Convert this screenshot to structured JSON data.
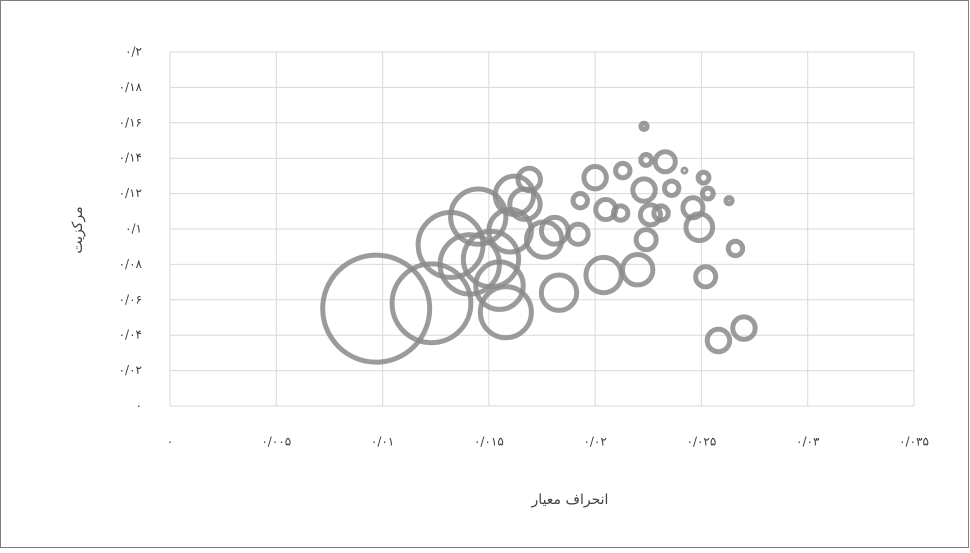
{
  "chart_data": {
    "type": "bubble",
    "x_label": "انحراف معیار",
    "y_label": "مرکزیت",
    "color": "#8a8a8a",
    "grid": true,
    "xlim": [
      0,
      0.035
    ],
    "ylim": [
      0,
      0.2
    ],
    "xticks": [
      {
        "value": 0,
        "label": "۰"
      },
      {
        "value": 0.005,
        "label": "۰/۰۰۵"
      },
      {
        "value": 0.01,
        "label": "۰/۰۱"
      },
      {
        "value": 0.015,
        "label": "۰/۰۱۵"
      },
      {
        "value": 0.02,
        "label": "۰/۰۲"
      },
      {
        "value": 0.025,
        "label": "۰/۰۲۵"
      },
      {
        "value": 0.03,
        "label": "۰/۰۳"
      },
      {
        "value": 0.035,
        "label": "۰/۰۳۵"
      }
    ],
    "yticks": [
      {
        "value": 0,
        "label": "۰"
      },
      {
        "value": 0.02,
        "label": "۰/۰۲"
      },
      {
        "value": 0.04,
        "label": "۰/۰۴"
      },
      {
        "value": 0.06,
        "label": "۰/۰۶"
      },
      {
        "value": 0.08,
        "label": "۰/۰۸"
      },
      {
        "value": 0.1,
        "label": "۰/۱"
      },
      {
        "value": 0.12,
        "label": "۰/۱۲"
      },
      {
        "value": 0.14,
        "label": "۰/۱۴"
      },
      {
        "value": 0.16,
        "label": "۰/۱۶"
      },
      {
        "value": 0.18,
        "label": "۰/۱۸"
      },
      {
        "value": 0.2,
        "label": "۰/۲"
      }
    ],
    "x": [
      0.0097,
      0.0123,
      0.0132,
      0.0145,
      0.0141,
      0.0151,
      0.0158,
      0.0155,
      0.016,
      0.0162,
      0.0169,
      0.0167,
      0.0176,
      0.0183,
      0.0181,
      0.0192,
      0.0193,
      0.02,
      0.0204,
      0.0205,
      0.0212,
      0.0213,
      0.022,
      0.0224,
      0.0223,
      0.0224,
      0.0223,
      0.0226,
      0.0231,
      0.0233,
      0.0236,
      0.0242,
      0.0246,
      0.0249,
      0.0251,
      0.0253,
      0.0252,
      0.0263,
      0.0266,
      0.0258,
      0.027
    ],
    "y": [
      0.055,
      0.058,
      0.091,
      0.107,
      0.08,
      0.083,
      0.053,
      0.068,
      0.099,
      0.119,
      0.128,
      0.114,
      0.094,
      0.064,
      0.099,
      0.097,
      0.116,
      0.129,
      0.074,
      0.111,
      0.109,
      0.133,
      0.077,
      0.094,
      0.158,
      0.139,
      0.122,
      0.108,
      0.109,
      0.138,
      0.123,
      0.133,
      0.112,
      0.101,
      0.129,
      0.12,
      0.073,
      0.116,
      0.089,
      0.037,
      0.044
    ],
    "sizes": [
      100,
      56,
      39,
      29,
      33,
      29,
      25,
      22,
      18,
      15,
      6,
      10,
      13,
      13,
      8,
      5,
      3,
      6,
      13,
      5,
      3,
      3,
      10,
      5,
      1,
      2,
      6,
      5,
      3,
      5,
      3,
      0.5,
      5,
      8,
      2,
      2,
      5,
      1,
      3,
      6,
      6
    ]
  }
}
